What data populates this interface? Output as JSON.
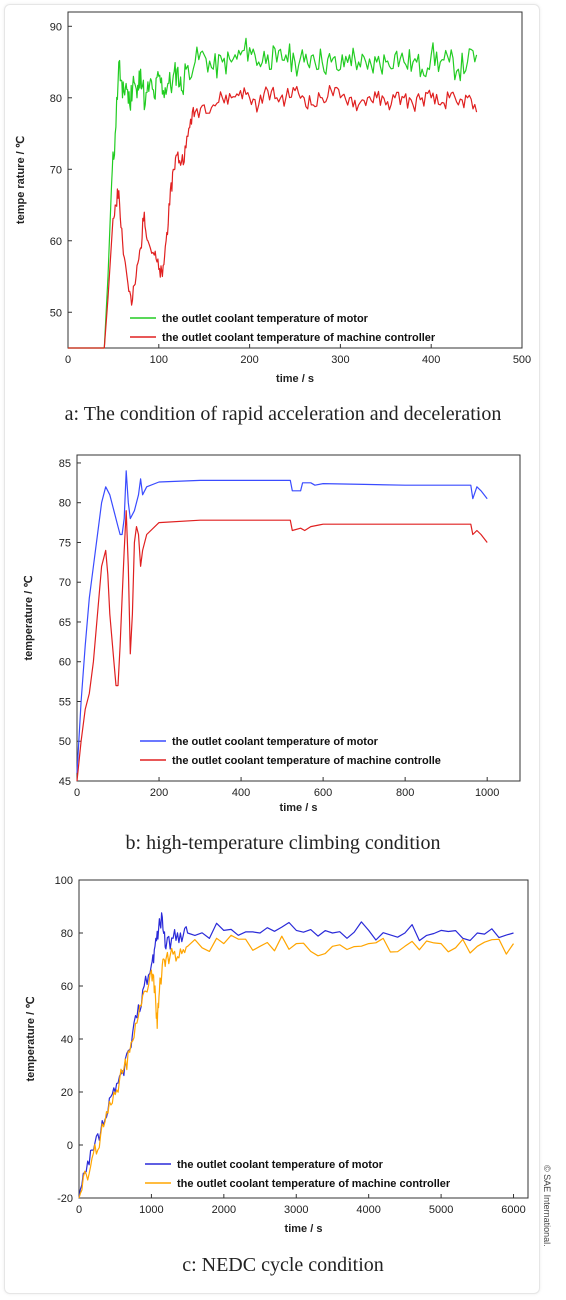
{
  "chart_data": [
    {
      "type": "line",
      "title": "",
      "xlabel": "time / s",
      "ylabel": "tempe rature / ℃",
      "xlim": [
        0,
        500
      ],
      "ylim": [
        45,
        92
      ],
      "xticks": [
        "0",
        "100",
        "200",
        "300",
        "400",
        "500"
      ],
      "yticks": [
        "50",
        "60",
        "70",
        "80",
        "90"
      ],
      "legend": "bottom-right",
      "series": [
        {
          "name": "the outlet coolant temperature of motor",
          "color": "#22cc22",
          "points": [
            [
              0,
              45
            ],
            [
              40,
              45
            ],
            [
              44,
              55
            ],
            [
              48,
              68
            ],
            [
              52,
              75
            ],
            [
              56,
              85
            ],
            [
              60,
              80
            ],
            [
              64,
              82
            ],
            [
              68,
              79
            ],
            [
              72,
              83
            ],
            [
              76,
              80
            ],
            [
              80,
              84
            ],
            [
              85,
              79
            ],
            [
              90,
              82
            ],
            [
              95,
              80
            ],
            [
              100,
              83
            ],
            [
              105,
              81
            ],
            [
              110,
              82
            ],
            [
              115,
              82
            ],
            [
              120,
              84
            ],
            [
              125,
              81
            ],
            [
              130,
              84
            ],
            [
              140,
              85
            ],
            [
              150,
              86
            ],
            [
              160,
              84
            ],
            [
              170,
              85
            ],
            [
              180,
              85
            ],
            [
              190,
              86
            ],
            [
              200,
              87
            ],
            [
              210,
              85
            ],
            [
              220,
              86
            ],
            [
              230,
              85
            ],
            [
              240,
              86
            ],
            [
              250,
              85
            ],
            [
              260,
              85
            ],
            [
              270,
              86
            ],
            [
              280,
              85
            ],
            [
              290,
              85
            ],
            [
              300,
              84
            ],
            [
              310,
              86
            ],
            [
              320,
              85
            ],
            [
              330,
              84
            ],
            [
              340,
              85
            ],
            [
              350,
              85
            ],
            [
              360,
              86
            ],
            [
              370,
              85
            ],
            [
              380,
              85
            ],
            [
              390,
              84
            ],
            [
              400,
              86
            ],
            [
              410,
              85
            ],
            [
              420,
              85
            ],
            [
              430,
              84
            ],
            [
              440,
              85
            ],
            [
              450,
              86
            ]
          ],
          "noise": 2.0
        },
        {
          "name": "the outlet coolant temperature of machine controller",
          "color": "#e02020",
          "points": [
            [
              0,
              45
            ],
            [
              40,
              45
            ],
            [
              44,
              52
            ],
            [
              48,
              60
            ],
            [
              52,
              65
            ],
            [
              56,
              67
            ],
            [
              60,
              60
            ],
            [
              65,
              55
            ],
            [
              70,
              51
            ],
            [
              75,
              55
            ],
            [
              80,
              59
            ],
            [
              84,
              64
            ],
            [
              88,
              60
            ],
            [
              95,
              58
            ],
            [
              100,
              56
            ],
            [
              104,
              55
            ],
            [
              108,
              60
            ],
            [
              112,
              65
            ],
            [
              116,
              70
            ],
            [
              120,
              72
            ],
            [
              125,
              71
            ],
            [
              130,
              73
            ],
            [
              135,
              77
            ],
            [
              140,
              78
            ],
            [
              150,
              79
            ],
            [
              160,
              79
            ],
            [
              170,
              80
            ],
            [
              180,
              80
            ],
            [
              190,
              81
            ],
            [
              200,
              80
            ],
            [
              210,
              79
            ],
            [
              220,
              81
            ],
            [
              230,
              80
            ],
            [
              240,
              80
            ],
            [
              250,
              81
            ],
            [
              260,
              80
            ],
            [
              270,
              79
            ],
            [
              280,
              80
            ],
            [
              290,
              81
            ],
            [
              300,
              80
            ],
            [
              310,
              80
            ],
            [
              320,
              79
            ],
            [
              330,
              80
            ],
            [
              340,
              80
            ],
            [
              350,
              79
            ],
            [
              360,
              80
            ],
            [
              370,
              80
            ],
            [
              380,
              79
            ],
            [
              390,
              80
            ],
            [
              400,
              80
            ],
            [
              410,
              79
            ],
            [
              420,
              80
            ],
            [
              430,
              79
            ],
            [
              440,
              80
            ],
            [
              450,
              78
            ]
          ],
          "noise": 1.2
        }
      ]
    },
    {
      "type": "line",
      "title": "",
      "xlabel": "time / s",
      "ylabel": "temperature / ℃",
      "xlim": [
        0,
        1080
      ],
      "ylim": [
        45,
        86
      ],
      "xticks": [
        "0",
        "200",
        "400",
        "600",
        "800",
        "1000"
      ],
      "yticks": [
        "45",
        "50",
        "55",
        "60",
        "65",
        "70",
        "75",
        "80",
        "85"
      ],
      "legend": "bottom-right",
      "series": [
        {
          "name": "the outlet coolant temperature of motor",
          "color": "#3a4cff",
          "points": [
            [
              0,
              46
            ],
            [
              10,
              55
            ],
            [
              20,
              62
            ],
            [
              30,
              68
            ],
            [
              40,
              72
            ],
            [
              50,
              76
            ],
            [
              60,
              80
            ],
            [
              70,
              82
            ],
            [
              80,
              81
            ],
            [
              90,
              79
            ],
            [
              100,
              77
            ],
            [
              105,
              76
            ],
            [
              110,
              76
            ],
            [
              115,
              78
            ],
            [
              120,
              84
            ],
            [
              125,
              80
            ],
            [
              130,
              78
            ],
            [
              140,
              79
            ],
            [
              150,
              81
            ],
            [
              155,
              83
            ],
            [
              160,
              81
            ],
            [
              170,
              82
            ],
            [
              200,
              82.6
            ],
            [
              300,
              82.8
            ],
            [
              400,
              82.8
            ],
            [
              500,
              82.8
            ],
            [
              520,
              82.8
            ],
            [
              525,
              81.5
            ],
            [
              545,
              81.5
            ],
            [
              550,
              82.5
            ],
            [
              570,
              82.5
            ],
            [
              580,
              82.2
            ],
            [
              600,
              82.4
            ],
            [
              700,
              82.3
            ],
            [
              800,
              82.2
            ],
            [
              900,
              82.2
            ],
            [
              960,
              82.2
            ],
            [
              965,
              80.5
            ],
            [
              975,
              82
            ],
            [
              985,
              81.5
            ],
            [
              1000,
              80.5
            ]
          ],
          "noise": 0
        },
        {
          "name": "the outlet coolant temperature of machine controlle",
          "color": "#e02020",
          "points": [
            [
              0,
              45
            ],
            [
              10,
              50
            ],
            [
              20,
              54
            ],
            [
              30,
              56
            ],
            [
              40,
              60
            ],
            [
              50,
              66
            ],
            [
              60,
              72
            ],
            [
              70,
              74
            ],
            [
              75,
              71
            ],
            [
              80,
              66
            ],
            [
              90,
              60
            ],
            [
              95,
              57
            ],
            [
              100,
              57
            ],
            [
              105,
              62
            ],
            [
              110,
              68
            ],
            [
              115,
              74
            ],
            [
              120,
              79
            ],
            [
              125,
              72
            ],
            [
              130,
              61
            ],
            [
              135,
              66
            ],
            [
              140,
              75
            ],
            [
              145,
              77
            ],
            [
              150,
              76
            ],
            [
              155,
              72
            ],
            [
              160,
              74
            ],
            [
              170,
              76
            ],
            [
              200,
              77.5
            ],
            [
              300,
              77.8
            ],
            [
              400,
              77.8
            ],
            [
              500,
              77.8
            ],
            [
              520,
              77.8
            ],
            [
              525,
              76.5
            ],
            [
              545,
              76.8
            ],
            [
              555,
              76.5
            ],
            [
              570,
              77
            ],
            [
              590,
              77.2
            ],
            [
              600,
              77.3
            ],
            [
              700,
              77.3
            ],
            [
              800,
              77.3
            ],
            [
              900,
              77.3
            ],
            [
              960,
              77.3
            ],
            [
              965,
              76
            ],
            [
              975,
              76.5
            ],
            [
              985,
              76
            ],
            [
              1000,
              75
            ]
          ],
          "noise": 0
        }
      ]
    },
    {
      "type": "line",
      "title": "",
      "xlabel": "time / s",
      "ylabel": "temperature / ℃",
      "xlim": [
        0,
        6200
      ],
      "ylim": [
        -20,
        100
      ],
      "xticks": [
        "0",
        "1000",
        "2000",
        "3000",
        "4000",
        "5000",
        "6000"
      ],
      "yticks": [
        "-20",
        "0",
        "20",
        "40",
        "60",
        "80",
        "100"
      ],
      "legend": "bottom-right",
      "series": [
        {
          "name": "the outlet coolant temperature of motor",
          "color": "#2a2ad8",
          "points": [
            [
              0,
              -20
            ],
            [
              100,
              -10
            ],
            [
              200,
              -2
            ],
            [
              300,
              5
            ],
            [
              400,
              13
            ],
            [
              500,
              20
            ],
            [
              600,
              28
            ],
            [
              700,
              36
            ],
            [
              800,
              48
            ],
            [
              900,
              60
            ],
            [
              1000,
              68
            ],
            [
              1050,
              75
            ],
            [
              1100,
              82
            ],
            [
              1150,
              86
            ],
            [
              1200,
              74
            ],
            [
              1300,
              78
            ],
            [
              1400,
              80
            ],
            [
              1500,
              80
            ],
            [
              2000,
              81
            ],
            [
              2500,
              80
            ],
            [
              3000,
              81
            ],
            [
              3500,
              80
            ],
            [
              4000,
              81
            ],
            [
              4500,
              80
            ],
            [
              5000,
              81
            ],
            [
              5500,
              80
            ],
            [
              6000,
              80
            ]
          ],
          "noise": 3.5
        },
        {
          "name": "the outlet coolant temperature of machine controller",
          "color": "#ffa500",
          "points": [
            [
              0,
              -20
            ],
            [
              100,
              -11
            ],
            [
              200,
              -3
            ],
            [
              300,
              4
            ],
            [
              400,
              12
            ],
            [
              500,
              19
            ],
            [
              600,
              27
            ],
            [
              700,
              35
            ],
            [
              800,
              46
            ],
            [
              900,
              58
            ],
            [
              1000,
              66
            ],
            [
              1050,
              60
            ],
            [
              1080,
              44
            ],
            [
              1110,
              58
            ],
            [
              1150,
              68
            ],
            [
              1200,
              70
            ],
            [
              1300,
              72
            ],
            [
              1400,
              74
            ],
            [
              1500,
              75
            ],
            [
              2000,
              76
            ],
            [
              2500,
              75
            ],
            [
              3000,
              76
            ],
            [
              3500,
              75
            ],
            [
              4000,
              76
            ],
            [
              4500,
              75
            ],
            [
              5000,
              76
            ],
            [
              5500,
              75
            ],
            [
              6000,
              76
            ]
          ],
          "noise": 4.0
        }
      ]
    }
  ],
  "captions": [
    "a: The condition of rapid acceleration and deceleration",
    "b: high-temperature climbing condition",
    "c: NEDC cycle condition"
  ],
  "credit": "© SAE International."
}
